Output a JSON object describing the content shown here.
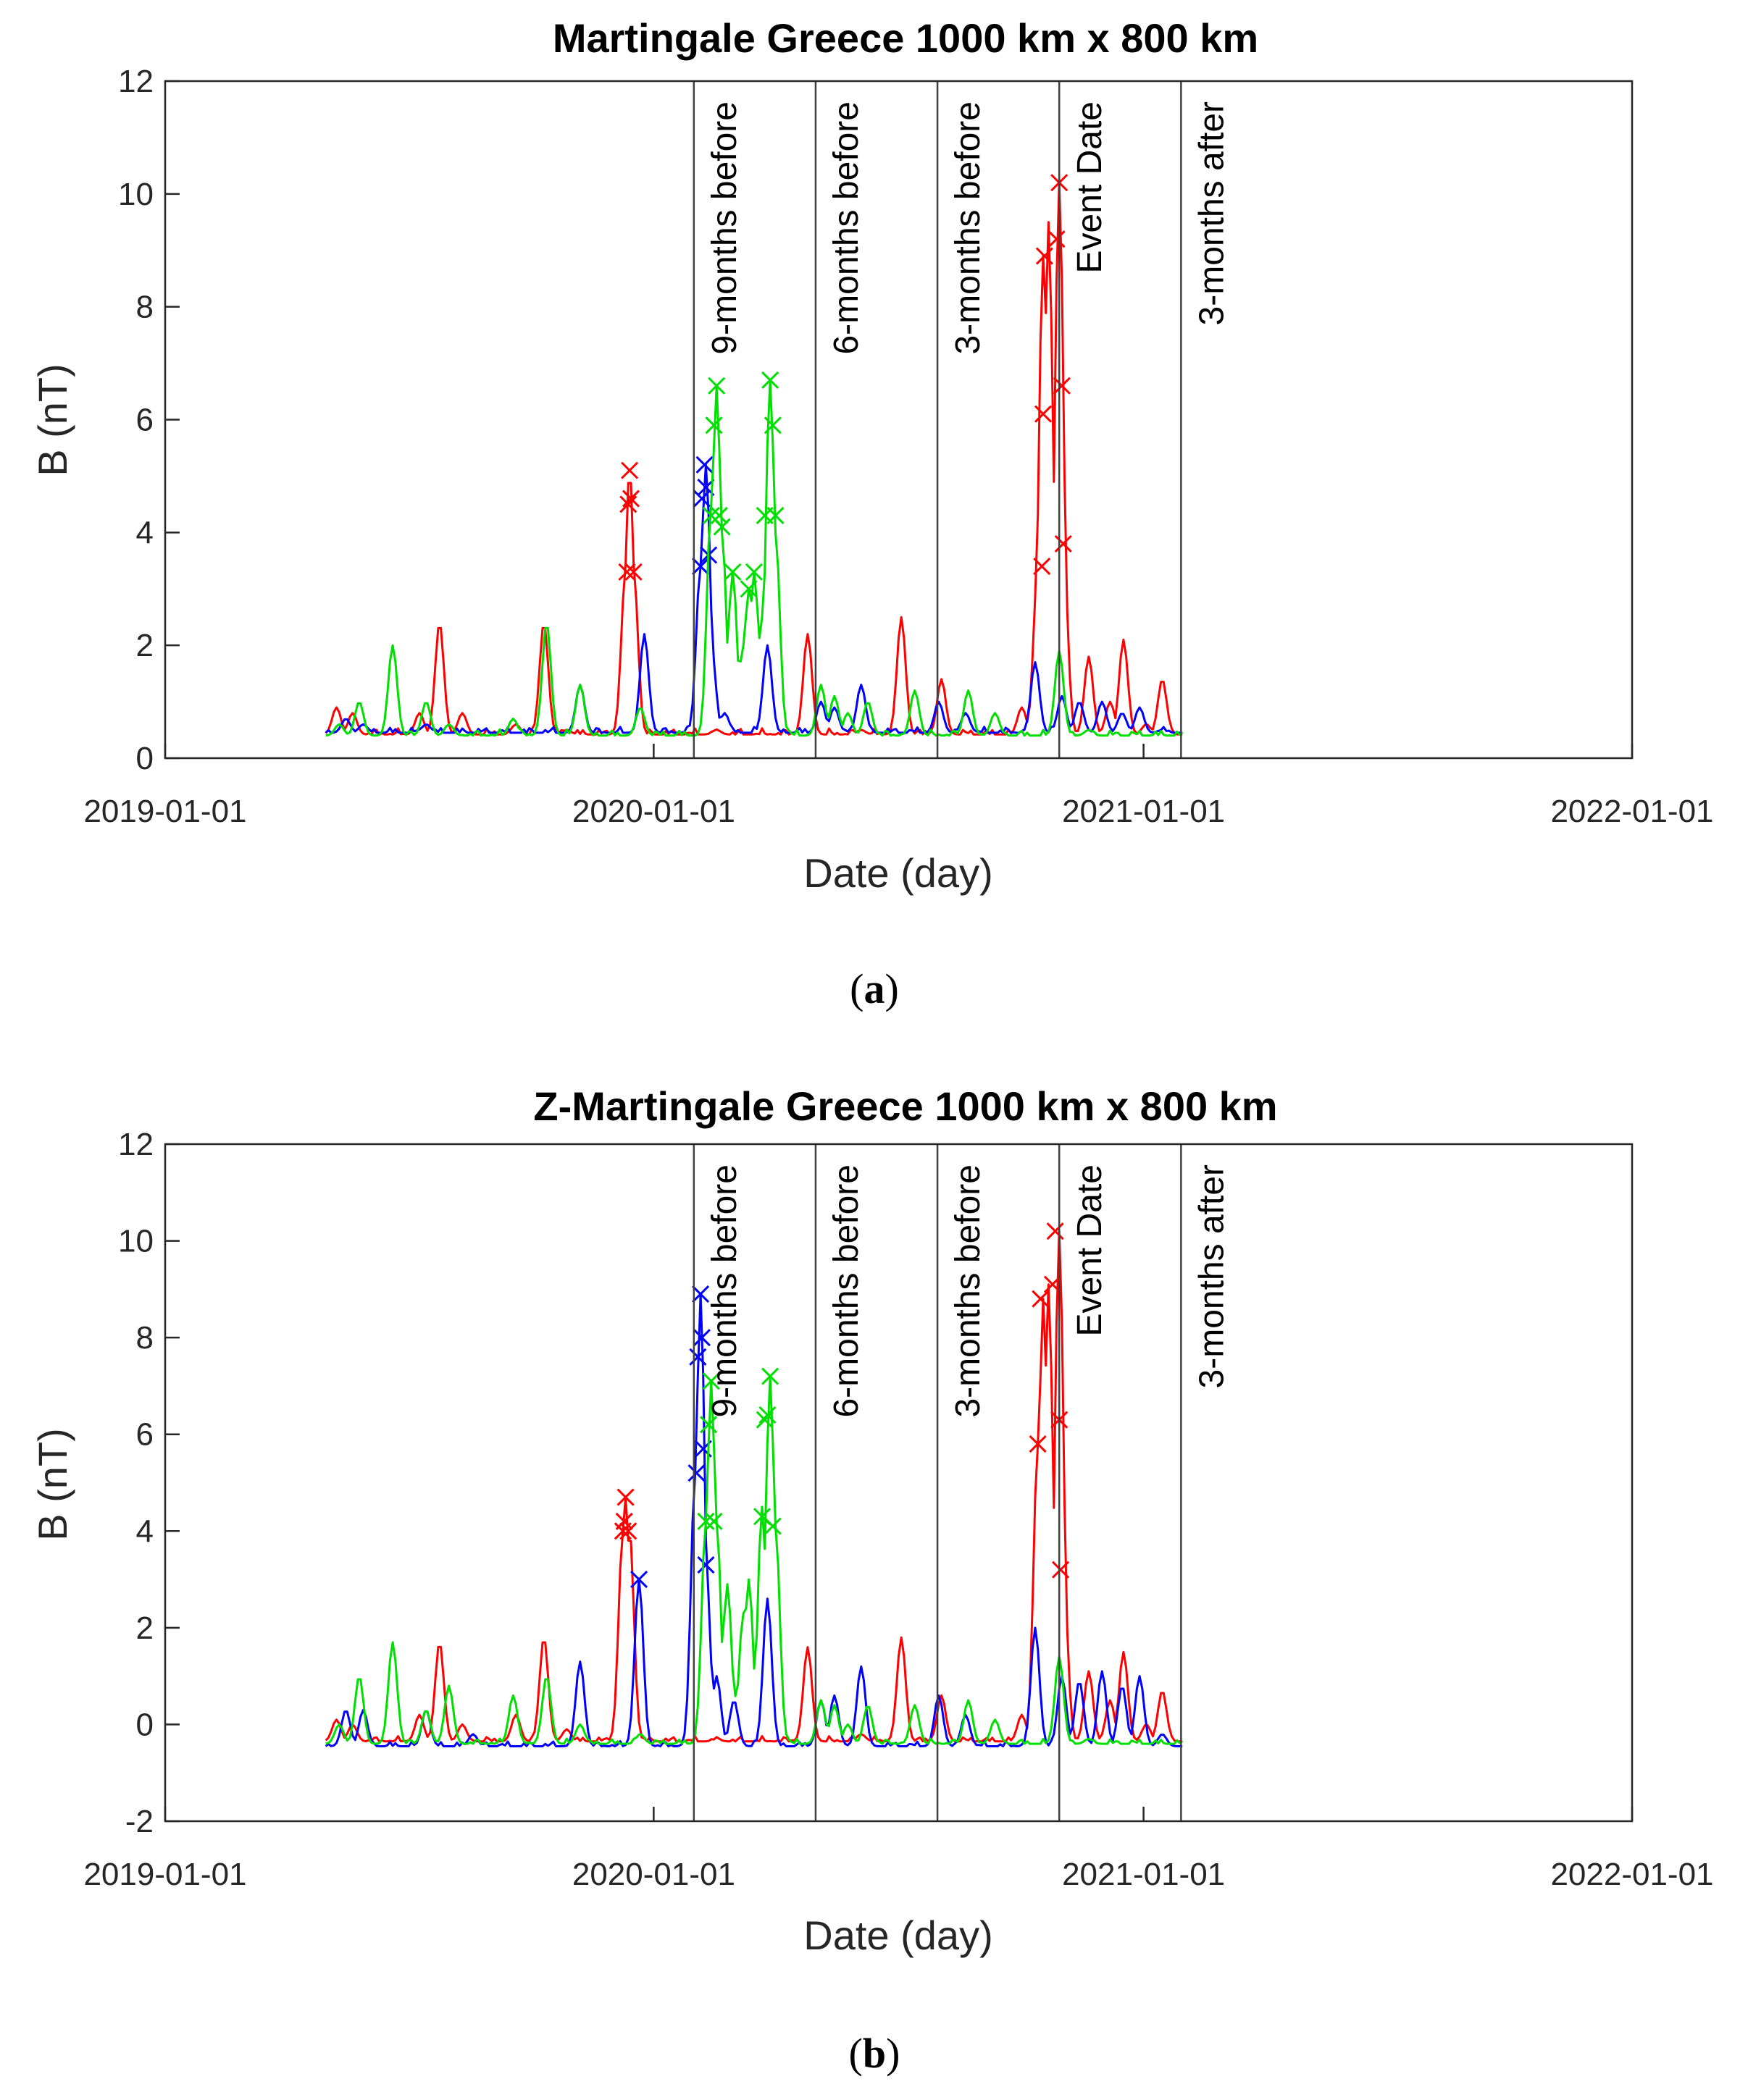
{
  "chart_data": [
    {
      "type": "line",
      "title": "Martingale Greece 1000 km x 800 km",
      "xlabel": "Date (day)",
      "ylabel": "B (nT)",
      "caption": "a",
      "xlim": [
        0,
        1096
      ],
      "ylim": [
        0,
        12
      ],
      "yticks": [
        0,
        2,
        4,
        6,
        8,
        10,
        12
      ],
      "xticks": [
        {
          "day": 0,
          "label": "2019-01-01"
        },
        {
          "day": 365,
          "label": "2020-01-01"
        },
        {
          "day": 731,
          "label": "2021-01-01"
        },
        {
          "day": 1096,
          "label": "2022-01-01"
        }
      ],
      "vlines": [
        {
          "day": 395,
          "label": "9-months before"
        },
        {
          "day": 486,
          "label": "6-months before"
        },
        {
          "day": 577,
          "label": "3-months before"
        },
        {
          "day": 668,
          "label": "Event Date"
        },
        {
          "day": 759,
          "label": "3-months after"
        }
      ],
      "series": [
        {
          "name": "red",
          "color": "#ff0000",
          "base": 0.42,
          "peaks": [
            [
              128,
              0.9
            ],
            [
              140,
              0.8
            ],
            [
              190,
              0.8
            ],
            [
              205,
              2.4
            ],
            [
              222,
              0.8
            ],
            [
              262,
              0.6
            ],
            [
              283,
              2.4
            ],
            [
              300,
              0.5
            ],
            [
              344,
              3.3
            ],
            [
              347,
              5.1
            ],
            [
              350,
              3.3
            ],
            [
              412,
              0.5
            ],
            [
              480,
              2.2
            ],
            [
              520,
              0.5
            ],
            [
              550,
              2.5
            ],
            [
              580,
              1.4
            ],
            [
              640,
              0.9
            ],
            [
              652,
              3.4
            ],
            [
              656,
              8.9
            ],
            [
              660,
              9.5
            ],
            [
              668,
              10.2
            ],
            [
              671,
              3.8
            ],
            [
              690,
              1.8
            ],
            [
              706,
              1.0
            ],
            [
              716,
              2.1
            ],
            [
              733,
              0.6
            ],
            [
              745,
              1.4
            ]
          ],
          "markers": [
            [
              345,
              3.3
            ],
            [
              346,
              4.5
            ],
            [
              347,
              5.1
            ],
            [
              348,
              4.6
            ],
            [
              350,
              3.3
            ],
            [
              655,
              3.4
            ],
            [
              656,
              6.1
            ],
            [
              657,
              8.9
            ],
            [
              666,
              9.2
            ],
            [
              668,
              10.2
            ],
            [
              670,
              6.6
            ],
            [
              671,
              3.8
            ]
          ]
        },
        {
          "name": "blue",
          "color": "#0000ff",
          "base": 0.45,
          "peaks": [
            [
              135,
              0.7
            ],
            [
              148,
              0.6
            ],
            [
              195,
              0.6
            ],
            [
              230,
              0.4
            ],
            [
              310,
              1.3
            ],
            [
              358,
              2.2
            ],
            [
              400,
              3.4
            ],
            [
              404,
              5.2
            ],
            [
              408,
              2.0
            ],
            [
              418,
              0.8
            ],
            [
              450,
              2.0
            ],
            [
              490,
              1.0
            ],
            [
              500,
              0.9
            ],
            [
              520,
              1.3
            ],
            [
              578,
              1.0
            ],
            [
              598,
              0.8
            ],
            [
              650,
              1.7
            ],
            [
              670,
              1.1
            ],
            [
              683,
              1.0
            ],
            [
              700,
              1.0
            ],
            [
              715,
              0.8
            ],
            [
              728,
              0.9
            ],
            [
              745,
              0.5
            ]
          ],
          "markers": [
            [
              400,
              3.4
            ],
            [
              401,
              4.6
            ],
            [
              403,
              5.2
            ],
            [
              404,
              4.8
            ],
            [
              406,
              3.6
            ]
          ]
        },
        {
          "name": "green",
          "color": "#00e000",
          "base": 0.4,
          "peaks": [
            [
              130,
              0.6
            ],
            [
              145,
              1.0
            ],
            [
              170,
              2.0
            ],
            [
              195,
              1.0
            ],
            [
              212,
              0.6
            ],
            [
              260,
              0.7
            ],
            [
              285,
              2.4
            ],
            [
              310,
              1.3
            ],
            [
              355,
              0.9
            ],
            [
              408,
              4.5
            ],
            [
              412,
              6.6
            ],
            [
              416,
              4.0
            ],
            [
              424,
              3.3
            ],
            [
              432,
              2.0
            ],
            [
              436,
              3.0
            ],
            [
              440,
              3.3
            ],
            [
              446,
              2.5
            ],
            [
              452,
              6.7
            ],
            [
              456,
              4.0
            ],
            [
              462,
              0.6
            ],
            [
              490,
              1.3
            ],
            [
              500,
              1.1
            ],
            [
              510,
              0.8
            ],
            [
              525,
              1.0
            ],
            [
              560,
              1.2
            ],
            [
              600,
              1.2
            ],
            [
              620,
              0.8
            ],
            [
              668,
              1.9
            ],
            [
              690,
              0.5
            ]
          ],
          "markers": [
            [
              408,
              4.3
            ],
            [
              410,
              5.9
            ],
            [
              412,
              6.6
            ],
            [
              414,
              4.3
            ],
            [
              416,
              4.1
            ],
            [
              424,
              3.3
            ],
            [
              436,
              3.0
            ],
            [
              440,
              3.3
            ],
            [
              448,
              4.3
            ],
            [
              452,
              6.7
            ],
            [
              454,
              5.9
            ],
            [
              456,
              4.3
            ]
          ]
        }
      ]
    },
    {
      "type": "line",
      "title": "Z-Martingale Greece 1000 km x 800 km",
      "xlabel": "Date (day)",
      "ylabel": "B (nT)",
      "caption": "b",
      "xlim": [
        0,
        1096
      ],
      "ylim": [
        -2,
        12
      ],
      "yticks": [
        -2,
        0,
        2,
        4,
        6,
        8,
        10,
        12
      ],
      "xticks": [
        {
          "day": 0,
          "label": "2019-01-01"
        },
        {
          "day": 365,
          "label": "2020-01-01"
        },
        {
          "day": 731,
          "label": "2021-01-01"
        },
        {
          "day": 1096,
          "label": "2022-01-01"
        }
      ],
      "vlines": [
        {
          "day": 395,
          "label": "9-months before"
        },
        {
          "day": 486,
          "label": "6-months before"
        },
        {
          "day": 577,
          "label": "3-months before"
        },
        {
          "day": 668,
          "label": "Event Date"
        },
        {
          "day": 759,
          "label": "3-months after"
        }
      ],
      "series": [
        {
          "name": "red",
          "color": "#ff0000",
          "base": -0.35,
          "peaks": [
            [
              128,
              0.1
            ],
            [
              140,
              0.0
            ],
            [
              190,
              0.2
            ],
            [
              205,
              1.7
            ],
            [
              222,
              0.0
            ],
            [
              262,
              0.2
            ],
            [
              283,
              1.8
            ],
            [
              300,
              -0.1
            ],
            [
              342,
              4.0
            ],
            [
              344,
              4.7
            ],
            [
              347,
              4.0
            ],
            [
              412,
              -0.3
            ],
            [
              480,
              1.6
            ],
            [
              520,
              -0.2
            ],
            [
              550,
              1.8
            ],
            [
              580,
              0.6
            ],
            [
              640,
              0.2
            ],
            [
              652,
              5.8
            ],
            [
              656,
              8.8
            ],
            [
              660,
              9.1
            ],
            [
              668,
              10.2
            ],
            [
              671,
              3.2
            ],
            [
              690,
              1.1
            ],
            [
              706,
              0.5
            ],
            [
              716,
              1.5
            ],
            [
              733,
              0.0
            ],
            [
              745,
              0.7
            ]
          ],
          "markers": [
            [
              342,
              4.0
            ],
            [
              343,
              4.2
            ],
            [
              344,
              4.7
            ],
            [
              346,
              4.0
            ],
            [
              652,
              5.8
            ],
            [
              654,
              8.8
            ],
            [
              663,
              9.1
            ],
            [
              665,
              10.2
            ],
            [
              668,
              6.3
            ],
            [
              669,
              3.2
            ]
          ]
        },
        {
          "name": "blue",
          "color": "#0000ff",
          "base": -0.45,
          "peaks": [
            [
              135,
              0.3
            ],
            [
              148,
              0.3
            ],
            [
              195,
              0.3
            ],
            [
              230,
              -0.2
            ],
            [
              310,
              1.3
            ],
            [
              354,
              3.0
            ],
            [
              396,
              5.2
            ],
            [
              400,
              8.9
            ],
            [
              404,
              3.3
            ],
            [
              412,
              1.0
            ],
            [
              425,
              0.5
            ],
            [
              450,
              2.6
            ],
            [
              490,
              0.5
            ],
            [
              500,
              0.6
            ],
            [
              520,
              1.2
            ],
            [
              578,
              0.6
            ],
            [
              598,
              0.2
            ],
            [
              650,
              2.0
            ],
            [
              670,
              1.0
            ],
            [
              683,
              0.9
            ],
            [
              700,
              1.1
            ],
            [
              715,
              0.8
            ],
            [
              728,
              1.0
            ],
            [
              745,
              -0.2
            ]
          ],
          "markers": [
            [
              397,
              5.2
            ],
            [
              398,
              7.6
            ],
            [
              400,
              8.9
            ],
            [
              401,
              8.0
            ],
            [
              402,
              5.7
            ],
            [
              404,
              3.3
            ],
            [
              354,
              3.0
            ]
          ]
        },
        {
          "name": "green",
          "color": "#00e000",
          "base": -0.4,
          "peaks": [
            [
              130,
              0.0
            ],
            [
              145,
              1.0
            ],
            [
              170,
              1.7
            ],
            [
              195,
              0.3
            ],
            [
              212,
              0.8
            ],
            [
              260,
              0.6
            ],
            [
              285,
              1.0
            ],
            [
              310,
              0.0
            ],
            [
              355,
              -0.2
            ],
            [
              404,
              4.2
            ],
            [
              408,
              7.1
            ],
            [
              412,
              4.2
            ],
            [
              420,
              2.9
            ],
            [
              428,
              0.8
            ],
            [
              432,
              2.3
            ],
            [
              436,
              3.0
            ],
            [
              442,
              1.0
            ],
            [
              446,
              4.5
            ],
            [
              452,
              7.2
            ],
            [
              456,
              4.1
            ],
            [
              462,
              -0.2
            ],
            [
              490,
              0.5
            ],
            [
              500,
              0.4
            ],
            [
              510,
              0.0
            ],
            [
              525,
              0.4
            ],
            [
              560,
              0.4
            ],
            [
              600,
              0.5
            ],
            [
              620,
              0.1
            ],
            [
              668,
              1.4
            ],
            [
              690,
              -0.3
            ]
          ],
          "markers": [
            [
              404,
              4.2
            ],
            [
              406,
              6.2
            ],
            [
              408,
              7.1
            ],
            [
              410,
              4.2
            ],
            [
              446,
              4.3
            ],
            [
              448,
              6.3
            ],
            [
              450,
              6.4
            ],
            [
              452,
              7.2
            ],
            [
              454,
              4.1
            ]
          ]
        }
      ]
    }
  ]
}
